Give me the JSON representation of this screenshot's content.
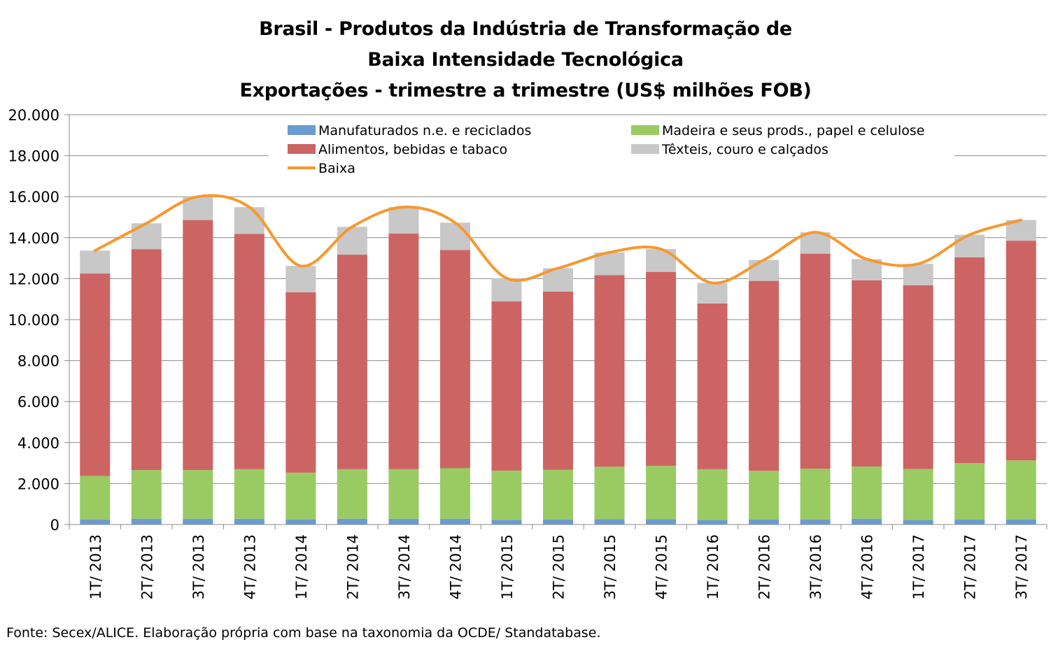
{
  "title": {
    "line1": "Brasil - Produtos da Indústria de Transformação de",
    "line2": "Baixa Intensidade Tecnológica",
    "line3": "Exportações - trimestre a trimestre (US$ milhões FOB)"
  },
  "source_note": "Fonte: Secex/ALICE. Elaboração própria com base na taxonomia da OCDE/ Standatabase.",
  "colors": {
    "manufaturados": "#6b9bd2",
    "madeira": "#9acb63",
    "alimentos": "#cd6464",
    "texteis": "#c8c8c8",
    "baixa": "#f7982f",
    "grid": "#8c8c8c"
  },
  "chart_data": {
    "type": "bar",
    "stacked": true,
    "ylim": [
      0,
      20000
    ],
    "yticks": [
      0,
      2000,
      4000,
      6000,
      8000,
      10000,
      12000,
      14000,
      16000,
      18000,
      20000
    ],
    "ytick_labels": [
      "0",
      "2.000",
      "4.000",
      "6.000",
      "8.000",
      "10.000",
      "12.000",
      "14.000",
      "16.000",
      "18.000",
      "20.000"
    ],
    "grid": true,
    "legend_position": "top",
    "categories": [
      "1T/ 2013",
      "2T/ 2013",
      "3T/ 2013",
      "4T/ 2013",
      "1T/ 2014",
      "2T/ 2014",
      "3T/ 2014",
      "4T/ 2014",
      "1T/ 2015",
      "2T/ 2015",
      "3T/ 2015",
      "4T/ 2015",
      "1T/ 2016",
      "2T/ 2016",
      "3T/ 2016",
      "4T/ 2016",
      "1T/ 2017",
      "2T/ 2017",
      "3T/ 2017"
    ],
    "series": [
      {
        "name": "Manufaturados n.e. e reciclados",
        "color_key": "manufaturados",
        "values": [
          250,
          280,
          280,
          280,
          250,
          280,
          280,
          280,
          230,
          250,
          260,
          260,
          220,
          250,
          250,
          280,
          220,
          250,
          250
        ]
      },
      {
        "name": "Madeira e seus prods., papel e celulose",
        "color_key": "madeira",
        "values": [
          2120,
          2380,
          2380,
          2420,
          2280,
          2420,
          2420,
          2470,
          2400,
          2420,
          2560,
          2600,
          2480,
          2370,
          2470,
          2550,
          2490,
          2750,
          2880
        ]
      },
      {
        "name": "Alimentos, bebidas e tabaco",
        "color_key": "alimentos",
        "values": [
          9880,
          10780,
          12200,
          11480,
          8800,
          10470,
          11500,
          10650,
          8260,
          8700,
          9350,
          9470,
          8090,
          9270,
          10500,
          9090,
          8970,
          10040,
          10720
        ]
      },
      {
        "name": "Têxteis, couro e calçados",
        "color_key": "texteis",
        "values": [
          1120,
          1260,
          1140,
          1310,
          1290,
          1360,
          1290,
          1330,
          1130,
          1140,
          1110,
          1110,
          1000,
          1020,
          1040,
          1030,
          1040,
          1100,
          1010
        ]
      },
      {
        "name": "Baixa",
        "color_key": "baixa",
        "kind": "line",
        "values": [
          13370,
          14700,
          16000,
          15490,
          12620,
          14530,
          15490,
          14730,
          12020,
          12510,
          13280,
          13440,
          11790,
          12910,
          14260,
          12950,
          12720,
          14140,
          14860
        ]
      }
    ]
  }
}
